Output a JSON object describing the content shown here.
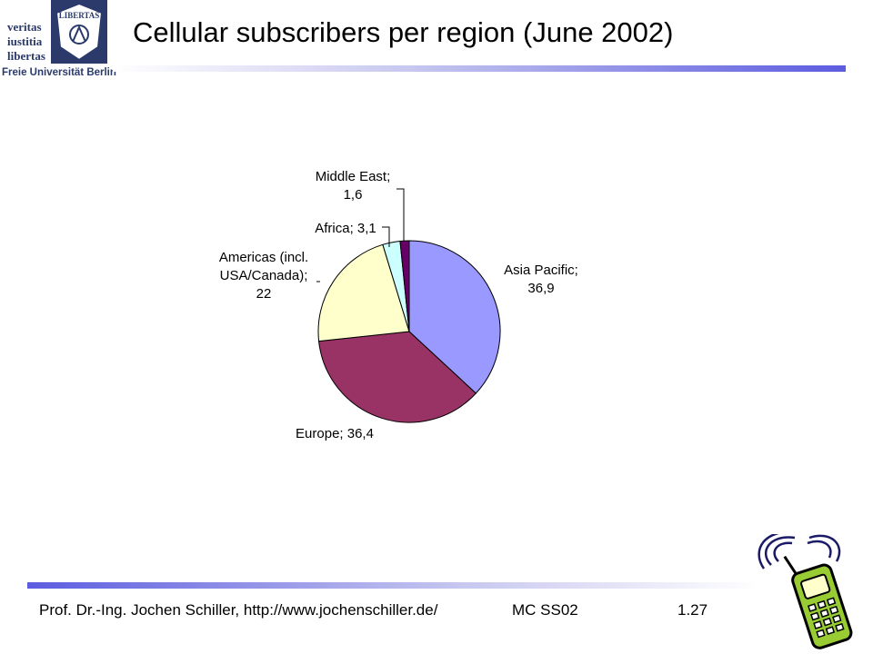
{
  "logo": {
    "lines": [
      "veritas",
      "iustitia",
      "libertas"
    ],
    "seal_text": "LIBERTAS",
    "university": "Freie Universität Berlin"
  },
  "slide": {
    "title": "Cellular subscribers per region (June 2002)"
  },
  "footer": {
    "author": "Prof. Dr.-Ing. Jochen Schiller, http://www.jochenschiller.de/",
    "course": "MC SS02",
    "page": "1.27"
  },
  "chart_data": {
    "type": "pie",
    "title": "",
    "legend": "none",
    "categories": [
      "Asia Pacific",
      "Europe",
      "Americas (incl. USA/Canada)",
      "Africa",
      "Middle East"
    ],
    "values": [
      36.9,
      36.4,
      22,
      3.1,
      1.6
    ],
    "data_labels": [
      [
        "Asia Pacific;",
        "36,9"
      ],
      [
        "Europe; 36,4"
      ],
      [
        "Americas (incl.",
        "USA/Canada);",
        "22"
      ],
      [
        "Africa; 3,1"
      ],
      [
        "Middle East;",
        "1,6"
      ]
    ],
    "colors": [
      "#9999ff",
      "#993366",
      "#ffffcc",
      "#ccffff",
      "#660066"
    ],
    "start_angle_deg": 0,
    "direction": "clockwise"
  }
}
